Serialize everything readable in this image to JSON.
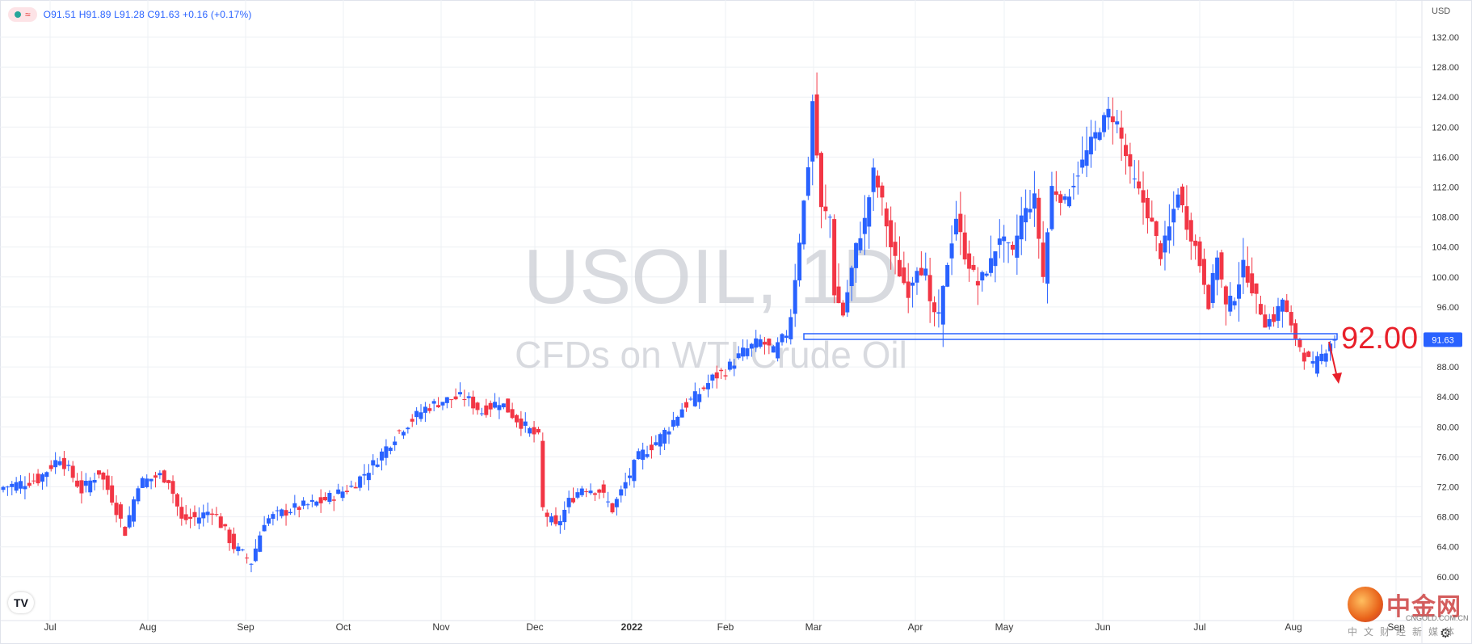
{
  "header": {
    "ohlc_text": "O91.51  H91.89  L91.28  C91.63  +0.16 (+0.17%)",
    "currency": "USD"
  },
  "watermark": {
    "symbol": "USOIL, 1D",
    "description": "CFDs on WTI Crude Oil"
  },
  "annotation": {
    "level_label": "92.00",
    "price_tag": "91.63"
  },
  "site_logo": {
    "name": "中金网",
    "url": "CNGOLD.COM.CN",
    "subtitle": "中文财经新媒体"
  },
  "colors": {
    "up": "#2962ff",
    "down": "#f23645",
    "annotation": "#e8202a",
    "level_line": "#2962ff",
    "grid": "#eef0f4"
  },
  "icons": [
    "tradingview-logo-icon",
    "settings-gear-icon",
    "indicator-dot-icon",
    "wave-icon",
    "down-arrow-icon"
  ],
  "chart_data": {
    "type": "candlestick",
    "title": "USOIL, 1D",
    "subtitle": "CFDs on WTI Crude Oil",
    "ylim": [
      58,
      132
    ],
    "y_ticks": [
      60,
      64,
      68,
      72,
      76,
      80,
      84,
      88,
      92,
      96,
      100,
      104,
      108,
      112,
      116,
      120,
      124,
      128,
      132
    ],
    "y_tick_labels": [
      "60.00",
      "64.00",
      "68.00",
      "72.00",
      "76.00",
      "80.00",
      "84.00",
      "88.00",
      "92.00",
      "96.00",
      "100.00",
      "104.00",
      "108.00",
      "112.00",
      "116.00",
      "120.00",
      "124.00",
      "128.00",
      "132.00"
    ],
    "x_ticks": [
      "Jul",
      "Aug",
      "Sep",
      "Oct",
      "Nov",
      "Dec",
      "2022",
      "Feb",
      "Mar",
      "Apr",
      "May",
      "Jun",
      "Jul",
      "Aug",
      "Sep"
    ],
    "grid": true,
    "last_close": 91.63,
    "support_level": 92.0,
    "anchors": [
      [
        0,
        72.0
      ],
      [
        8,
        73.0
      ],
      [
        13,
        76.0
      ],
      [
        18,
        71.5
      ],
      [
        22,
        74.0
      ],
      [
        25,
        70.5
      ],
      [
        28,
        66.0
      ],
      [
        31,
        72.5
      ],
      [
        36,
        73.5
      ],
      [
        38,
        73.0
      ],
      [
        41,
        67.5
      ],
      [
        45,
        68.0
      ],
      [
        48,
        69.0
      ],
      [
        53,
        64.0
      ],
      [
        55,
        63.0
      ],
      [
        57,
        62.0
      ],
      [
        60,
        67.5
      ],
      [
        66,
        69.0
      ],
      [
        73,
        70.0
      ],
      [
        80,
        72.0
      ],
      [
        85,
        75.0
      ],
      [
        91,
        79.5
      ],
      [
        94,
        81.0
      ],
      [
        97,
        82.5
      ],
      [
        101,
        83.5
      ],
      [
        106,
        84.0
      ],
      [
        110,
        82.0
      ],
      [
        114,
        83.5
      ],
      [
        118,
        81.0
      ],
      [
        123,
        78.5
      ],
      [
        124,
        69.0
      ],
      [
        127,
        66.5
      ],
      [
        130,
        70.0
      ],
      [
        133,
        72.0
      ],
      [
        137,
        71.5
      ],
      [
        140,
        69.0
      ],
      [
        143,
        72.5
      ],
      [
        146,
        76.0
      ],
      [
        150,
        78.0
      ],
      [
        153,
        80.0
      ],
      [
        156,
        82.5
      ],
      [
        160,
        84.5
      ],
      [
        163,
        86.5
      ],
      [
        166,
        87.5
      ],
      [
        170,
        90.0
      ],
      [
        174,
        91.5
      ],
      [
        177,
        90.0
      ],
      [
        180,
        92.5
      ],
      [
        181,
        95.0
      ],
      [
        183,
        105.0
      ],
      [
        185,
        115.0
      ],
      [
        186,
        123.5
      ],
      [
        188,
        109.0
      ],
      [
        190,
        108.0
      ],
      [
        191,
        98.0
      ],
      [
        193,
        95.0
      ],
      [
        196,
        104.0
      ],
      [
        198,
        107.5
      ],
      [
        200,
        114.0
      ],
      [
        202,
        110.0
      ],
      [
        204,
        104.0
      ],
      [
        206,
        100.5
      ],
      [
        208,
        98.0
      ],
      [
        210,
        101.5
      ],
      [
        212,
        100.5
      ],
      [
        213,
        96.0
      ],
      [
        215,
        94.5
      ],
      [
        217,
        102.0
      ],
      [
        219,
        108.0
      ],
      [
        221,
        103.0
      ],
      [
        224,
        99.0
      ],
      [
        227,
        102.0
      ],
      [
        229,
        105.5
      ],
      [
        232,
        103.0
      ],
      [
        234,
        108.0
      ],
      [
        237,
        110.5
      ],
      [
        239,
        100.0
      ],
      [
        241,
        112.0
      ],
      [
        244,
        110.0
      ],
      [
        247,
        114.0
      ],
      [
        250,
        118.0
      ],
      [
        252,
        120.0
      ],
      [
        254,
        122.0
      ],
      [
        256,
        120.5
      ],
      [
        259,
        114.0
      ],
      [
        262,
        110.0
      ],
      [
        264,
        107.0
      ],
      [
        266,
        103.0
      ],
      [
        268,
        106.5
      ],
      [
        270,
        111.5
      ],
      [
        272,
        107.0
      ],
      [
        274,
        104.0
      ],
      [
        276,
        99.5
      ],
      [
        277,
        96.5
      ],
      [
        279,
        103.0
      ],
      [
        281,
        96.0
      ],
      [
        283,
        97.5
      ],
      [
        285,
        101.5
      ],
      [
        288,
        97.0
      ],
      [
        290,
        94.0
      ],
      [
        292,
        94.5
      ],
      [
        294,
        97.0
      ],
      [
        296,
        93.0
      ],
      [
        297,
        92.0
      ],
      [
        299,
        89.5
      ],
      [
        301,
        88.0
      ],
      [
        303,
        89.5
      ],
      [
        305,
        91.5
      ],
      [
        306,
        91.63
      ]
    ]
  }
}
